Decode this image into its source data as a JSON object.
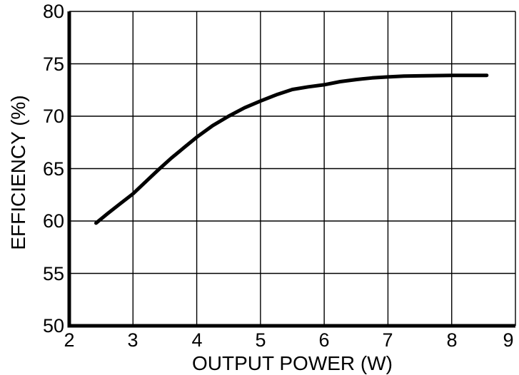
{
  "figure": {
    "background_color": "#ffffff",
    "curve_color": "#000000",
    "axis_color": "#000000",
    "grid_color": "#000000",
    "text_color": "#000000"
  },
  "chart_data": {
    "type": "line",
    "title": "",
    "xlabel": "OUTPUT POWER (W)",
    "ylabel": "EFFICIENCY (%)",
    "xlim": [
      2,
      9
    ],
    "ylim": [
      50,
      80
    ],
    "x_ticks": [
      2,
      3,
      4,
      5,
      6,
      7,
      8,
      9
    ],
    "y_ticks": [
      50,
      55,
      60,
      65,
      70,
      75,
      80
    ],
    "grid": "on",
    "legend": "none",
    "series": [
      {
        "name": "efficiency",
        "points": [
          [
            2.42,
            59.8
          ],
          [
            2.6,
            60.7
          ],
          [
            2.8,
            61.65
          ],
          [
            3.0,
            62.6
          ],
          [
            3.2,
            63.75
          ],
          [
            3.4,
            64.9
          ],
          [
            3.6,
            66.0
          ],
          [
            3.8,
            67.0
          ],
          [
            4.0,
            68.0
          ],
          [
            4.25,
            69.1
          ],
          [
            4.5,
            70.0
          ],
          [
            4.75,
            70.8
          ],
          [
            5.0,
            71.45
          ],
          [
            5.25,
            72.05
          ],
          [
            5.5,
            72.55
          ],
          [
            5.75,
            72.8
          ],
          [
            6.0,
            73.0
          ],
          [
            6.25,
            73.3
          ],
          [
            6.5,
            73.5
          ],
          [
            6.75,
            73.65
          ],
          [
            7.0,
            73.75
          ],
          [
            7.25,
            73.82
          ],
          [
            7.5,
            73.85
          ],
          [
            8.0,
            73.9
          ],
          [
            8.55,
            73.9
          ]
        ]
      }
    ]
  }
}
